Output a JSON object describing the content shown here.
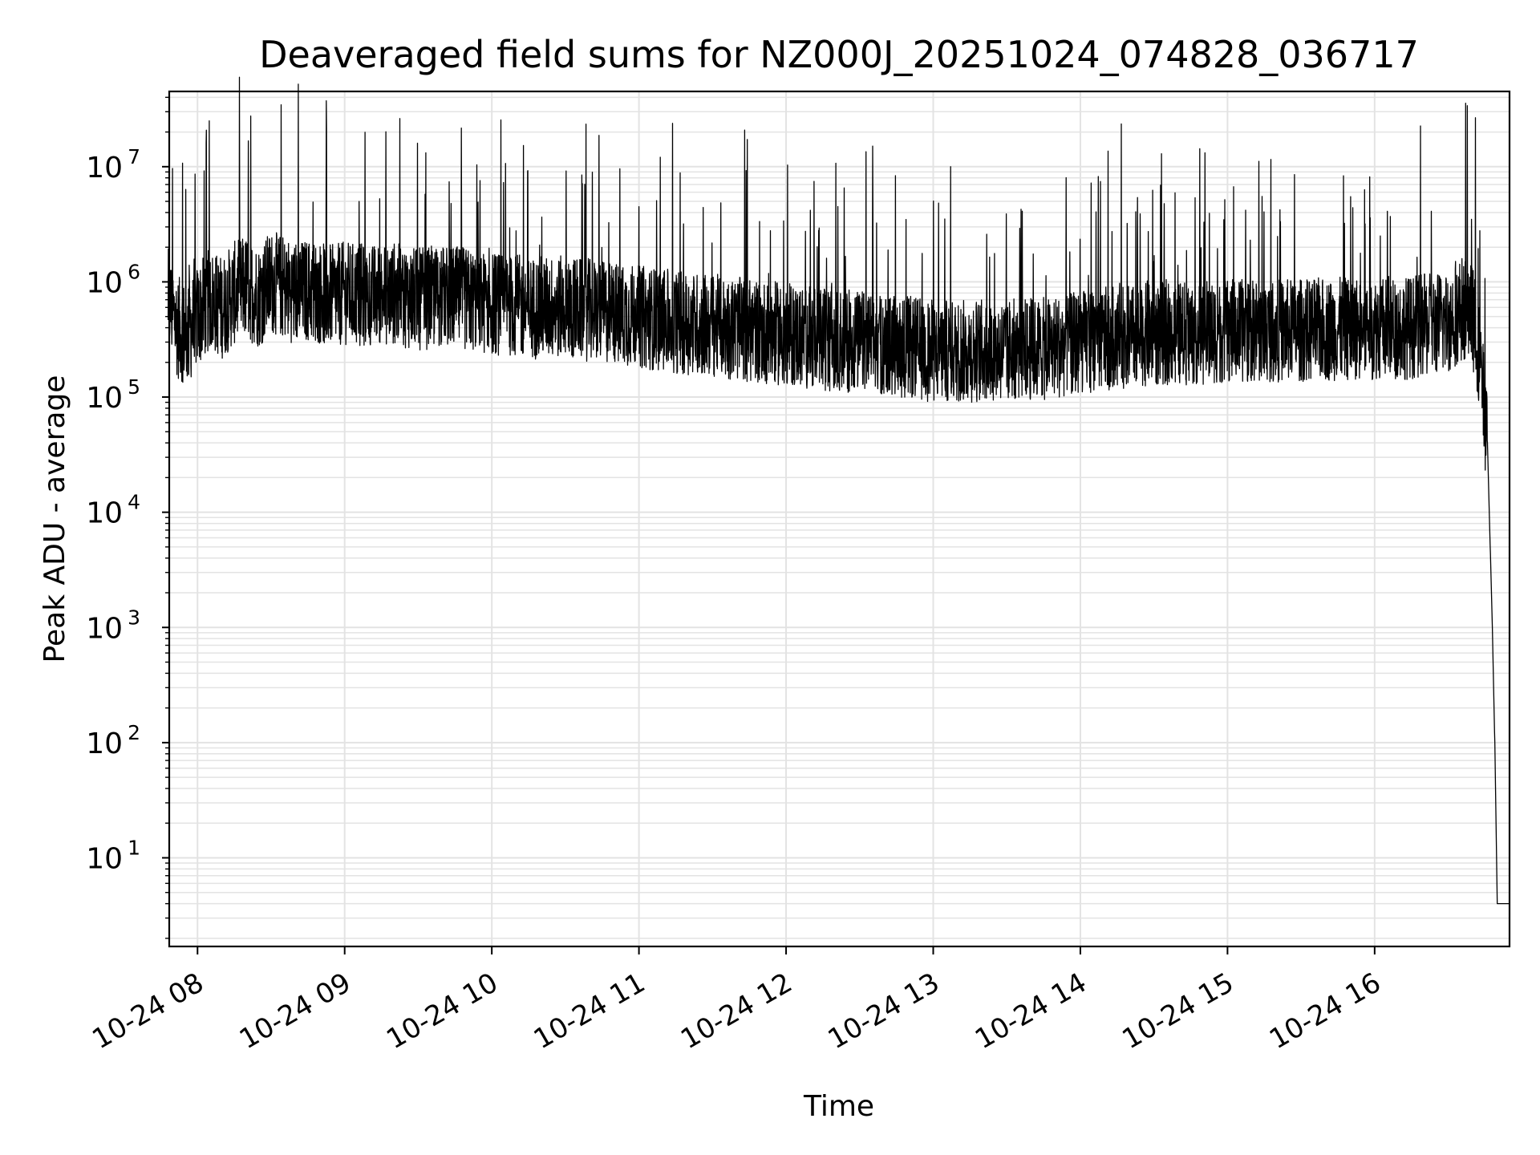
{
  "chart_data": {
    "type": "line",
    "title": "Deaveraged field sums for NZ000J_20251024_074828_036717",
    "xlabel": "Time",
    "ylabel": "Peak ADU - average",
    "y_scale": "log",
    "ylim": [
      1.7,
      45000000
    ],
    "xlim": [
      "2025-10-24 07:48:28",
      "2025-10-24 16:55:00"
    ],
    "x_tick_labels": [
      "10-24 08",
      "10-24 09",
      "10-24 10",
      "10-24 11",
      "10-24 12",
      "10-24 13",
      "10-24 14",
      "10-24 15",
      "10-24 16"
    ],
    "x_tick_times": [
      "2025-10-24 08:00",
      "2025-10-24 09:00",
      "2025-10-24 10:00",
      "2025-10-24 11:00",
      "2025-10-24 12:00",
      "2025-10-24 13:00",
      "2025-10-24 14:00",
      "2025-10-24 15:00",
      "2025-10-24 16:00"
    ],
    "y_tick_values": [
      10,
      100,
      1000,
      10000,
      100000,
      1000000,
      10000000
    ],
    "y_tick_labels": [
      {
        "base": "10",
        "exp": "1"
      },
      {
        "base": "10",
        "exp": "2"
      },
      {
        "base": "10",
        "exp": "3"
      },
      {
        "base": "10",
        "exp": "4"
      },
      {
        "base": "10",
        "exp": "5"
      },
      {
        "base": "10",
        "exp": "6"
      },
      {
        "base": "10",
        "exp": "7"
      }
    ],
    "grid": true,
    "legend": "none",
    "line_color": "#000000",
    "grid_color": "#e3e3e3",
    "series": [
      {
        "points": [
          [
            "2025-10-24 07:48",
            700000
          ],
          [
            "2025-10-24 07:52",
            400000
          ],
          [
            "2025-10-24 07:56",
            350000
          ],
          [
            "2025-10-24 08:00",
            500000
          ],
          [
            "2025-10-24 08:05",
            700000
          ],
          [
            "2025-10-24 08:10",
            600000
          ],
          [
            "2025-10-24 08:15",
            800000
          ],
          [
            "2025-10-24 08:20",
            900000
          ],
          [
            "2025-10-24 08:25",
            750000
          ],
          [
            "2025-10-24 08:30",
            1000000
          ],
          [
            "2025-10-24 08:35",
            900000
          ],
          [
            "2025-10-24 08:40",
            800000
          ],
          [
            "2025-10-24 08:45",
            850000
          ],
          [
            "2025-10-24 08:50",
            800000
          ],
          [
            "2025-10-24 08:55",
            750000
          ],
          [
            "2025-10-24 09:00",
            800000
          ],
          [
            "2025-10-24 09:10",
            750000
          ],
          [
            "2025-10-24 09:20",
            800000
          ],
          [
            "2025-10-24 09:30",
            700000
          ],
          [
            "2025-10-24 09:40",
            750000
          ],
          [
            "2025-10-24 09:50",
            700000
          ],
          [
            "2025-10-24 10:00",
            650000
          ],
          [
            "2025-10-24 10:15",
            600000
          ],
          [
            "2025-10-24 10:30",
            600000
          ],
          [
            "2025-10-24 10:45",
            550000
          ],
          [
            "2025-10-24 11:00",
            500000
          ],
          [
            "2025-10-24 11:15",
            450000
          ],
          [
            "2025-10-24 11:30",
            420000
          ],
          [
            "2025-10-24 11:45",
            380000
          ],
          [
            "2025-10-24 12:00",
            350000
          ],
          [
            "2025-10-24 12:15",
            320000
          ],
          [
            "2025-10-24 12:30",
            300000
          ],
          [
            "2025-10-24 12:45",
            280000
          ],
          [
            "2025-10-24 13:00",
            250000
          ],
          [
            "2025-10-24 13:15",
            250000
          ],
          [
            "2025-10-24 13:30",
            260000
          ],
          [
            "2025-10-24 13:45",
            260000
          ],
          [
            "2025-10-24 14:00",
            300000
          ],
          [
            "2025-10-24 14:15",
            330000
          ],
          [
            "2025-10-24 14:30",
            350000
          ],
          [
            "2025-10-24 14:45",
            360000
          ],
          [
            "2025-10-24 15:00",
            370000
          ],
          [
            "2025-10-24 15:15",
            380000
          ],
          [
            "2025-10-24 15:30",
            380000
          ],
          [
            "2025-10-24 15:45",
            390000
          ],
          [
            "2025-10-24 16:00",
            400000
          ],
          [
            "2025-10-24 16:15",
            400000
          ],
          [
            "2025-10-24 16:30",
            450000
          ],
          [
            "2025-10-24 16:36",
            600000
          ],
          [
            "2025-10-24 16:40",
            500000
          ],
          [
            "2025-10-24 16:43",
            200000
          ],
          [
            "2025-10-24 16:46",
            40000
          ],
          [
            "2025-10-24 16:48",
            1000
          ],
          [
            "2025-10-24 16:49",
            100
          ],
          [
            "2025-10-24 16:50",
            4
          ],
          [
            "2025-10-24 16:55",
            4
          ]
        ]
      }
    ]
  }
}
